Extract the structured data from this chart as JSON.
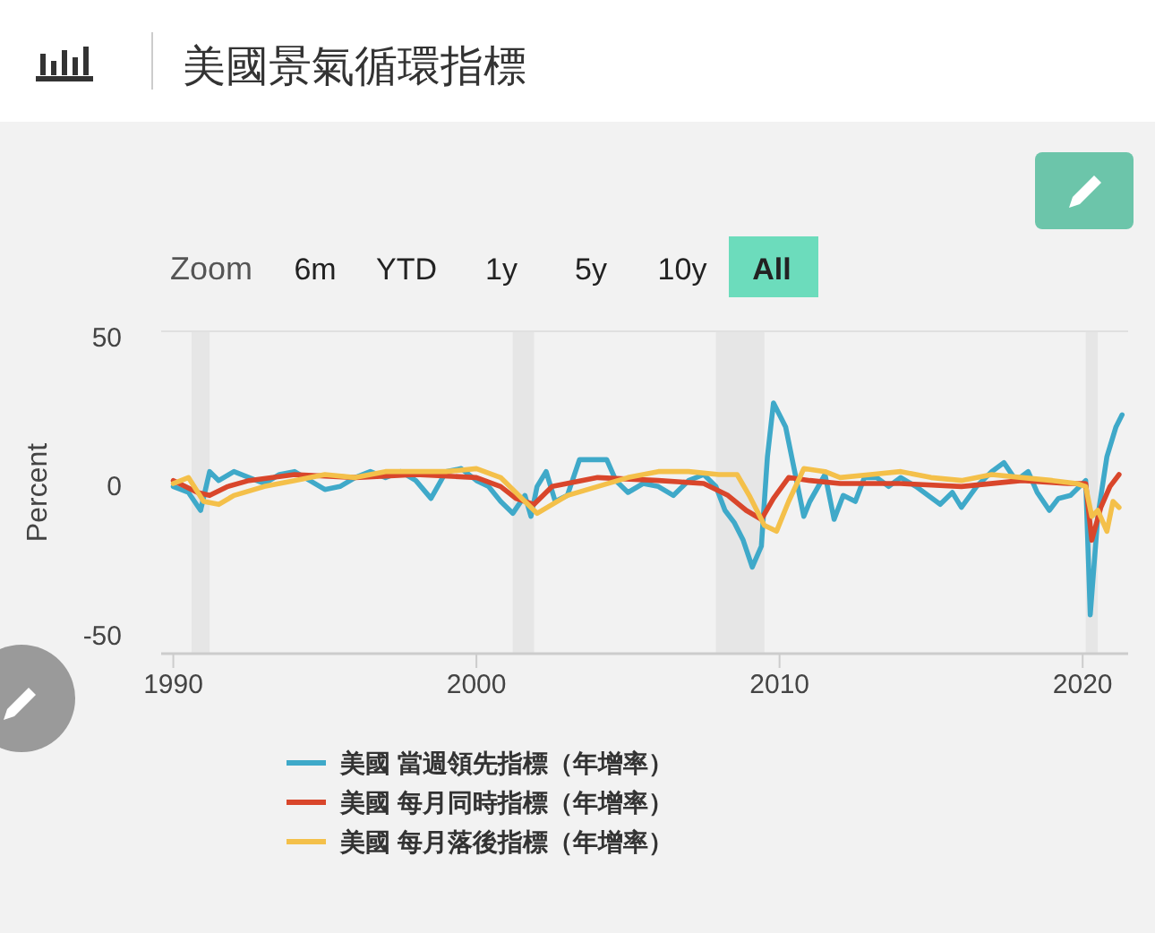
{
  "chart_data": {
    "type": "line",
    "title": "美國景氣循環指標",
    "ylabel": "Percent",
    "annotations": [
      "Zoom",
      "6m",
      "YTD",
      "1y",
      "5y",
      "10y",
      "All"
    ],
    "xlim": [
      1989.6,
      2021.5
    ],
    "xticks": [
      1990,
      2000,
      2010,
      2020
    ],
    "ylim": [
      -56,
      52
    ],
    "yticks": [
      -50,
      0,
      50
    ],
    "grid": false,
    "legend": "bottom",
    "line_style": "solid",
    "marker": "none",
    "bands": [
      {
        "axis": "x",
        "from": 1990.6,
        "to": 1991.2,
        "color": "#e6e6e6"
      },
      {
        "axis": "x",
        "from": 2001.2,
        "to": 2001.9,
        "color": "#e6e6e6"
      },
      {
        "axis": "x",
        "from": 2007.9,
        "to": 2009.5,
        "color": "#e6e6e6"
      },
      {
        "axis": "x",
        "from": 2020.1,
        "to": 2020.5,
        "color": "#e6e6e6"
      }
    ],
    "series": [
      {
        "name": "美國 當週領先指標（年增率）",
        "color": "#3fa9c9",
        "x": [
          1990,
          1990.5,
          1990.9,
          1991.2,
          1991.5,
          1992,
          1992.5,
          1993,
          1993.5,
          1994,
          1994.5,
          1995,
          1995.5,
          1996,
          1996.5,
          1997,
          1997.5,
          1998,
          1998.5,
          1999,
          1999.5,
          2000,
          2000.4,
          2000.8,
          2001.2,
          2001.6,
          2001.8,
          2002,
          2002.3,
          2002.6,
          2003,
          2003.4,
          2003.9,
          2004.3,
          2004.6,
          2005,
          2005.5,
          2006,
          2006.5,
          2007,
          2007.5,
          2007.9,
          2008.2,
          2008.5,
          2008.8,
          2009.1,
          2009.4,
          2009.6,
          2009.8,
          2010.2,
          2010.5,
          2010.8,
          2011,
          2011.5,
          2011.8,
          2012.1,
          2012.5,
          2012.8,
          2013.2,
          2013.6,
          2014,
          2014.5,
          2014.9,
          2015.3,
          2015.7,
          2016,
          2016.5,
          2017,
          2017.4,
          2017.8,
          2018.2,
          2018.5,
          2018.9,
          2019.2,
          2019.6,
          2019.9,
          2020.1,
          2020.25,
          2020.5,
          2020.8,
          2021.1,
          2021.3
        ],
        "values": [
          0,
          -2,
          -8,
          5,
          2,
          5,
          3,
          1,
          4,
          5,
          2,
          -1,
          0,
          3,
          5,
          3,
          5,
          2,
          -4,
          5,
          6,
          2,
          0,
          -5,
          -9,
          -3,
          -10,
          0,
          5,
          -5,
          -3,
          9,
          9,
          9,
          2,
          -2,
          1,
          0,
          -3,
          2,
          4,
          0,
          -8,
          -12,
          -18,
          -27,
          -20,
          10,
          28,
          20,
          5,
          -10,
          -5,
          4,
          -11,
          -3,
          -5,
          3,
          3,
          0,
          3,
          0,
          -3,
          -6,
          -2,
          -7,
          0,
          5,
          8,
          2,
          5,
          -2,
          -8,
          -4,
          -3,
          0,
          2,
          -43,
          -10,
          10,
          20,
          24
        ]
      },
      {
        "name": "美國 每月同時指標（年增率）",
        "color": "#d9462b",
        "x": [
          1990,
          1990.8,
          1991.2,
          1991.8,
          1992.5,
          1994,
          1996,
          1998,
          2000,
          2000.8,
          2001.3,
          2001.9,
          2002.5,
          2004,
          2006,
          2007.5,
          2008.3,
          2008.9,
          2009.4,
          2009.8,
          2010.3,
          2011,
          2012,
          2014,
          2016,
          2018,
          2019.5,
          2020.1,
          2020.3,
          2020.6,
          2020.9,
          2021.2
        ],
        "values": [
          2,
          -2,
          -3,
          0,
          2,
          4,
          3,
          4,
          3,
          0,
          -4,
          -6,
          0,
          3,
          2,
          1,
          -3,
          -8,
          -11,
          -4,
          3,
          2,
          1,
          1,
          0,
          2,
          1,
          1,
          -18,
          -7,
          0,
          4
        ]
      },
      {
        "name": "美國 每月落後指標（年增率）",
        "color": "#f4c04a",
        "x": [
          1990,
          1990.5,
          1991,
          1991.5,
          1992,
          1993,
          1994,
          1995,
          1996,
          1997,
          1998,
          1999,
          2000,
          2000.8,
          2001.5,
          2002,
          2002.5,
          2003,
          2004,
          2005,
          2006,
          2007,
          2008,
          2008.6,
          2009,
          2009.5,
          2009.9,
          2010.3,
          2010.8,
          2011.5,
          2012,
          2013,
          2014,
          2015,
          2016,
          2017,
          2018,
          2019,
          2019.8,
          2020.1,
          2020.3,
          2020.5,
          2020.8,
          2021,
          2021.2
        ],
        "values": [
          1,
          3,
          -5,
          -6,
          -3,
          0,
          2,
          4,
          3,
          5,
          5,
          5,
          6,
          3,
          -4,
          -9,
          -6,
          -3,
          0,
          3,
          5,
          5,
          4,
          4,
          -3,
          -13,
          -15,
          -5,
          6,
          5,
          3,
          4,
          5,
          3,
          2,
          4,
          3,
          2,
          1,
          0,
          -10,
          -8,
          -15,
          -5,
          -7
        ]
      }
    ]
  }
}
